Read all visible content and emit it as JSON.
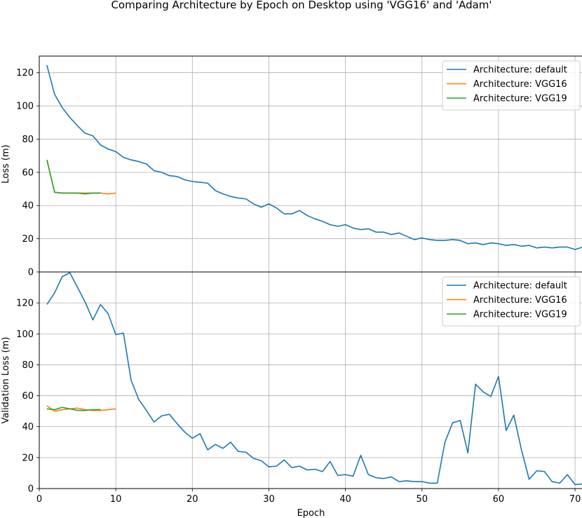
{
  "title": "Comparing Architecture by Epoch on Desktop using 'VGG16' and 'Adam'",
  "colors": {
    "default": "#1f77b4",
    "VGG16": "#ff7f0e",
    "VGG19": "#2ca02c",
    "grid": "#b0b0b0"
  },
  "chart_data": [
    {
      "type": "line",
      "xlabel": "",
      "ylabel": "Loss (m)",
      "xlim": [
        0,
        71
      ],
      "ylim": [
        0,
        130
      ],
      "yticks": [
        0,
        20,
        40,
        60,
        80,
        100,
        120
      ],
      "grid": true,
      "legend": "top-right",
      "series": [
        {
          "name": "Architecture: default",
          "x": [
            1,
            2,
            3,
            4,
            5,
            6,
            7,
            8,
            9,
            10,
            11,
            12,
            13,
            14,
            15,
            16,
            17,
            18,
            19,
            20,
            21,
            22,
            23,
            24,
            25,
            26,
            27,
            28,
            29,
            30,
            31,
            32,
            33,
            34,
            35,
            36,
            37,
            38,
            39,
            40,
            41,
            42,
            43,
            44,
            45,
            46,
            47,
            48,
            49,
            50,
            51,
            52,
            53,
            54,
            55,
            56,
            57,
            58,
            59,
            60,
            61,
            62,
            63,
            64,
            65,
            66,
            67,
            68,
            69,
            70,
            71
          ],
          "y": [
            124.5,
            107,
            99,
            93,
            88,
            83.5,
            82,
            76.5,
            74,
            72.5,
            69,
            67.5,
            66.5,
            65,
            61,
            60,
            58,
            57.5,
            55.5,
            54.5,
            54,
            53.5,
            49,
            47,
            45.5,
            44.5,
            44,
            41,
            39,
            41,
            38.5,
            35,
            35,
            37,
            34,
            32,
            30.5,
            28.5,
            27.5,
            28.5,
            26.5,
            25.5,
            26,
            24,
            24,
            22.5,
            23.5,
            21.5,
            19.5,
            20.5,
            19.5,
            19,
            19,
            19.5,
            19,
            17,
            17.5,
            16.5,
            17.5,
            17,
            16,
            16.5,
            15.5,
            16,
            14.5,
            15,
            14.5,
            15,
            15,
            13.5,
            15
          ]
        },
        {
          "name": "Architecture: VGG16",
          "x": [
            1,
            2,
            3,
            4,
            5,
            6,
            7,
            8,
            9,
            10
          ],
          "y": [
            67.5,
            48,
            47.5,
            47.5,
            47.5,
            47.5,
            47.5,
            47.5,
            47,
            47.5
          ]
        },
        {
          "name": "Architecture: VGG19",
          "x": [
            1,
            2,
            3,
            4,
            5,
            6,
            7,
            8
          ],
          "y": [
            67.5,
            48,
            47.5,
            47.5,
            47.5,
            47,
            47.5,
            47.5
          ]
        }
      ]
    },
    {
      "type": "line",
      "xlabel": "Epoch",
      "ylabel": "Validation Loss (m)",
      "xlim": [
        0,
        71
      ],
      "ylim": [
        0,
        140
      ],
      "xticks": [
        0,
        10,
        20,
        30,
        40,
        50,
        60,
        70
      ],
      "yticks": [
        0,
        20,
        40,
        60,
        80,
        100,
        120
      ],
      "grid": true,
      "legend": "top-right",
      "series": [
        {
          "name": "Architecture: default",
          "x": [
            1,
            2,
            3,
            4,
            5,
            6,
            7,
            8,
            9,
            10,
            11,
            12,
            13,
            14,
            15,
            16,
            17,
            18,
            19,
            20,
            21,
            22,
            23,
            24,
            25,
            26,
            27,
            28,
            29,
            30,
            31,
            32,
            33,
            34,
            35,
            36,
            37,
            38,
            39,
            40,
            41,
            42,
            43,
            44,
            45,
            46,
            47,
            48,
            49,
            50,
            51,
            52,
            53,
            54,
            55,
            56,
            57,
            58,
            59,
            60,
            61,
            62,
            63,
            64,
            65,
            66,
            67,
            68,
            69,
            70,
            71
          ],
          "y": [
            119,
            126.5,
            137,
            139.5,
            130,
            120.5,
            109,
            119,
            113,
            99.5,
            100.5,
            70,
            57.5,
            50.5,
            43,
            47,
            48,
            42,
            36.5,
            32.5,
            35.5,
            25,
            28.5,
            26,
            30,
            24,
            23.5,
            19.5,
            18,
            14,
            14.5,
            18.5,
            13.5,
            14.5,
            12,
            12.5,
            11,
            17.5,
            8.5,
            9,
            8,
            21.5,
            9,
            7,
            6.5,
            7.5,
            4.5,
            5,
            4.5,
            4.5,
            3.5,
            3.5,
            30,
            42.5,
            44,
            23,
            67.5,
            62.5,
            59.5,
            72.5,
            37.5,
            47.5,
            25,
            6,
            11.5,
            11,
            4.5,
            3.5,
            9,
            2.5,
            3
          ]
        },
        {
          "name": "Architecture: VGG16",
          "x": [
            1,
            2,
            3,
            4,
            5,
            6,
            7,
            8,
            9,
            10
          ],
          "y": [
            53.5,
            50,
            51,
            51.5,
            52,
            51,
            50.5,
            50.5,
            51,
            51.5
          ]
        },
        {
          "name": "Architecture: VGG19",
          "x": [
            1,
            2,
            3,
            4,
            5,
            6,
            7,
            8
          ],
          "y": [
            51.5,
            51,
            52.5,
            51.5,
            50.5,
            50.5,
            51,
            51
          ]
        }
      ]
    }
  ]
}
